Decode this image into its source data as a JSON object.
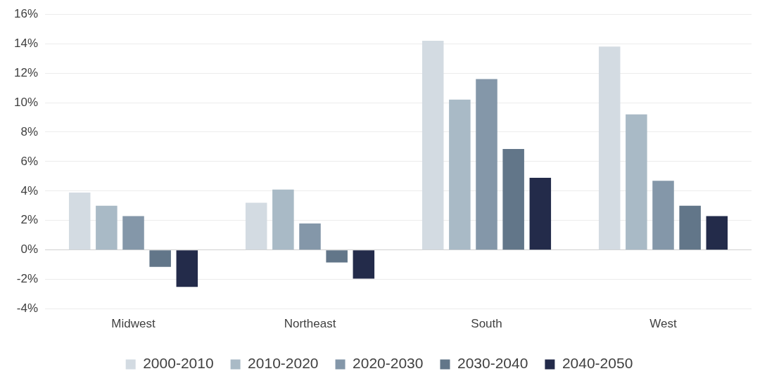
{
  "chart_data": {
    "type": "bar",
    "categories": [
      "Midwest",
      "Northeast",
      "South",
      "West"
    ],
    "series": [
      {
        "name": "2000-2010",
        "color": "#d3dbe2",
        "values": [
          3.9,
          3.2,
          14.2,
          13.8
        ]
      },
      {
        "name": "2010-2020",
        "color": "#a9bac6",
        "values": [
          3.0,
          4.1,
          10.2,
          9.2
        ]
      },
      {
        "name": "2020-2030",
        "color": "#8497a9",
        "values": [
          2.3,
          1.8,
          11.6,
          4.7
        ]
      },
      {
        "name": "2030-2040",
        "color": "#627689",
        "values": [
          -1.15,
          -0.85,
          6.85,
          3.0
        ]
      },
      {
        "name": "2040-2050",
        "color": "#232b4a",
        "values": [
          -2.5,
          -1.95,
          4.9,
          2.3
        ]
      }
    ],
    "ylim": [
      -4,
      16
    ],
    "yticks": [
      {
        "value": -4,
        "label": "-4%"
      },
      {
        "value": -2,
        "label": "-2%"
      },
      {
        "value": 0,
        "label": "0%"
      },
      {
        "value": 2,
        "label": "2%"
      },
      {
        "value": 4,
        "label": "4%"
      },
      {
        "value": 6,
        "label": "6%"
      },
      {
        "value": 8,
        "label": "8%"
      },
      {
        "value": 10,
        "label": "10%"
      },
      {
        "value": 12,
        "label": "12%"
      },
      {
        "value": 14,
        "label": "14%"
      },
      {
        "value": 16,
        "label": "16%"
      }
    ],
    "grid": "y",
    "legend": "bottom"
  }
}
